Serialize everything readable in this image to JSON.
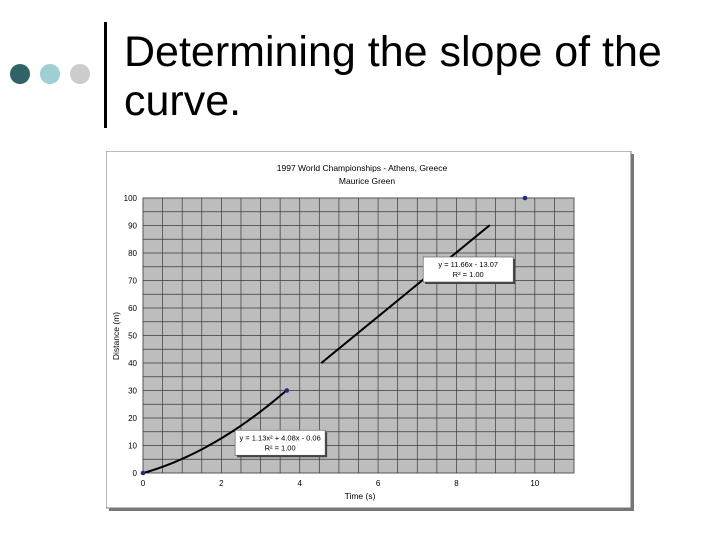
{
  "slide": {
    "title": "Determining the slope of the curve.",
    "bullet_colors": [
      "#2e6468",
      "#9ecfd2",
      "#cccccc"
    ],
    "accent_bar_color": "#000000"
  },
  "chart_data": {
    "type": "scatter",
    "title": "1997 World Championships - Athens, Greece",
    "subtitle": "Maurice Green",
    "xlabel": "Time (s)",
    "ylabel": "Distance (m)",
    "xlim": [
      0,
      11
    ],
    "ylim": [
      0,
      100
    ],
    "x_ticks": [
      0,
      2,
      4,
      6,
      8,
      10
    ],
    "y_ticks": [
      0,
      10,
      20,
      30,
      40,
      50,
      60,
      70,
      80,
      90,
      100
    ],
    "grid": true,
    "x_minor_step": 0.5,
    "y_minor_step": 5,
    "series": [
      {
        "color": "#1f2a80",
        "points": [
          [
            0,
            0
          ],
          [
            3.67,
            30
          ],
          [
            9.75,
            100
          ]
        ]
      }
    ],
    "fit_lines": [
      {
        "type": "polynomial",
        "coefficients": [
          1.13,
          4.08,
          -0.06
        ],
        "x_range": [
          0,
          3.67
        ],
        "color": "#000000"
      },
      {
        "type": "linear",
        "coefficients": [
          11.66,
          -13.07
        ],
        "x_range": [
          4.55,
          8.85
        ],
        "color": "#000000"
      }
    ],
    "annotations": [
      {
        "text": "y = 11.66x - 13.07",
        "text2": "R² = 1.00",
        "anchor_xy": [
          8.3,
          74
        ]
      },
      {
        "text": "y = 1.13x² + 4.08x - 0.06",
        "text2": "R² = 1.00",
        "anchor_xy": [
          3.5,
          11
        ]
      }
    ]
  }
}
